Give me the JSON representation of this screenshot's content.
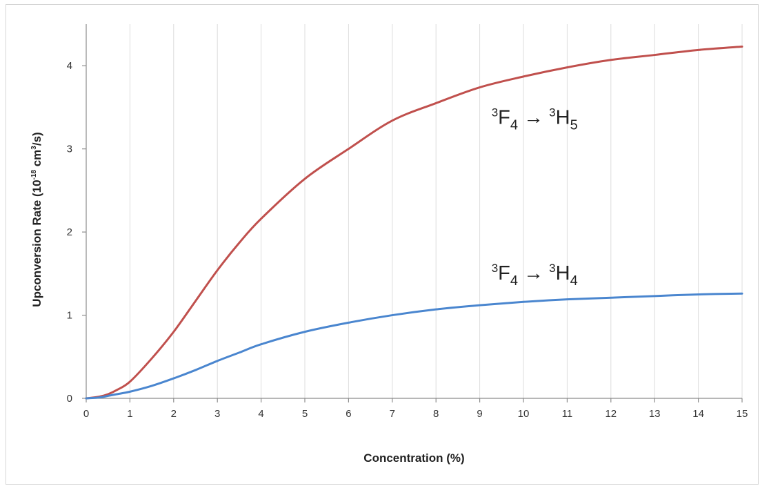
{
  "chart_data": {
    "type": "line",
    "title": "",
    "xlabel": "Concentration (%)",
    "ylabel": "Upconversion Rate (10-18 cm3/s)",
    "ylabel_parts": {
      "prefix": "Upconversion Rate (10",
      "exp1": "-18",
      "mid": " cm",
      "exp2": "3",
      "suffix": "/s)"
    },
    "xlim": [
      0,
      15
    ],
    "ylim": [
      0,
      4.5
    ],
    "x_ticks": [
      0,
      1,
      2,
      3,
      4,
      5,
      6,
      7,
      8,
      9,
      10,
      11,
      12,
      13,
      14,
      15
    ],
    "y_ticks": [
      0,
      1,
      2,
      3,
      4
    ],
    "grid": true,
    "legend": "none",
    "series": [
      {
        "name": "3F4 → 3H5",
        "label_parts": {
          "sup1": "3",
          "base1": "F",
          "sub1": "4",
          "arrow": " → ",
          "sup2": "3",
          "base2": "H",
          "sub2": "5"
        },
        "color": "#c0504d",
        "x": [
          0,
          0.3,
          0.5,
          0.7,
          1,
          1.5,
          2,
          2.5,
          3,
          3.5,
          4,
          5,
          6,
          7,
          8,
          9,
          10,
          11,
          12,
          13,
          14,
          15
        ],
        "values": [
          0,
          0.02,
          0.05,
          0.1,
          0.2,
          0.48,
          0.8,
          1.17,
          1.54,
          1.87,
          2.16,
          2.64,
          3.0,
          3.34,
          3.55,
          3.74,
          3.87,
          3.98,
          4.07,
          4.13,
          4.19,
          4.23
        ]
      },
      {
        "name": "3F4 → 3H4",
        "label_parts": {
          "sup1": "3",
          "base1": "F",
          "sub1": "4",
          "arrow": " → ",
          "sup2": "3",
          "base2": "H",
          "sub2": "4"
        },
        "color": "#4a86cf",
        "x": [
          0,
          0.3,
          0.5,
          0.7,
          1,
          1.5,
          2,
          2.5,
          3,
          3.5,
          4,
          5,
          6,
          7,
          8,
          9,
          10,
          11,
          12,
          13,
          14,
          15
        ],
        "values": [
          0,
          0.01,
          0.03,
          0.05,
          0.08,
          0.15,
          0.24,
          0.34,
          0.45,
          0.55,
          0.65,
          0.8,
          0.91,
          1.0,
          1.07,
          1.12,
          1.16,
          1.19,
          1.21,
          1.23,
          1.25,
          1.26
        ]
      }
    ]
  }
}
